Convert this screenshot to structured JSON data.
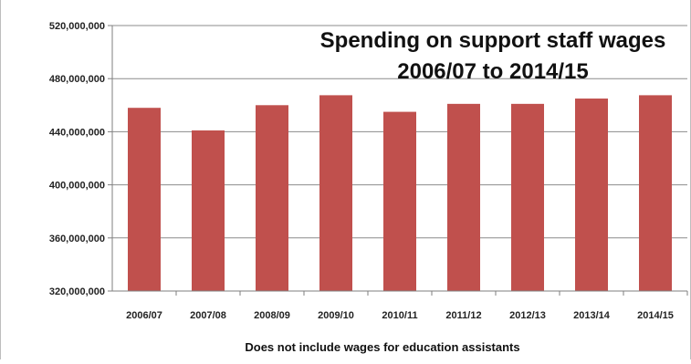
{
  "chart_data": {
    "type": "bar",
    "title": "Spending on support staff wages 2006/07 to 2014/15",
    "title_lines": [
      "Spending on support staff wages",
      "2006/07 to 2014/15"
    ],
    "xlabel": "Does not include wages for education assistants",
    "ylabel": "",
    "categories": [
      "2006/07",
      "2007/08",
      "2008/09",
      "2009/10",
      "2010/11",
      "2011/12",
      "2012/13",
      "2013/14",
      "2014/15"
    ],
    "values": [
      458000000,
      441000000,
      460000000,
      467500000,
      455000000,
      461000000,
      461000000,
      465000000,
      467500000
    ],
    "ylim": [
      320000000,
      520000000
    ],
    "yticks": [
      320000000,
      360000000,
      400000000,
      440000000,
      480000000,
      520000000
    ],
    "ytick_labels": [
      "320,000,000",
      "360,000,000",
      "400,000,000",
      "440,000,000",
      "480,000,000",
      "520,000,000"
    ],
    "grid": true,
    "legend": "none",
    "bar_color": "#c0504d"
  }
}
